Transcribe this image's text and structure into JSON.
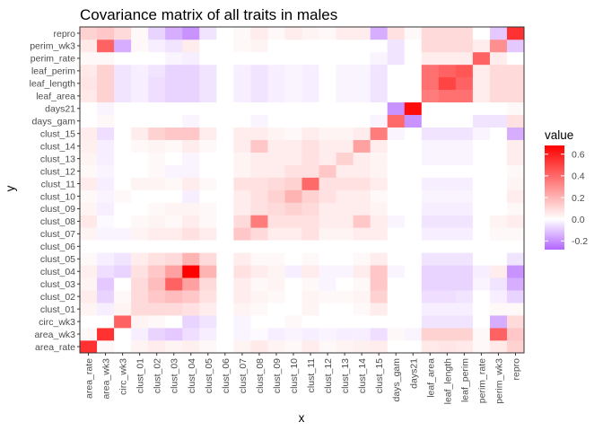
{
  "chart_data": {
    "type": "heatmap",
    "title": "Covariance matrix of all traits in males",
    "xlabel": "x",
    "ylabel": "y",
    "x": [
      "area_rate",
      "area_wk3",
      "circ_wk3",
      "clust_01",
      "clust_02",
      "clust_03",
      "clust_04",
      "clust_05",
      "clust_06",
      "clust_07",
      "clust_08",
      "clust_09",
      "clust_10",
      "clust_11",
      "clust_12",
      "clust_13",
      "clust_14",
      "clust_15",
      "days_gam",
      "days21",
      "leaf_area",
      "leaf_length",
      "leaf_perim",
      "perim_rate",
      "perim_wk3",
      "repro"
    ],
    "y": [
      "area_rate",
      "area_wk3",
      "circ_wk3",
      "clust_01",
      "clust_02",
      "clust_03",
      "clust_04",
      "clust_05",
      "clust_06",
      "clust_07",
      "clust_08",
      "clust_09",
      "clust_10",
      "clust_11",
      "clust_12",
      "clust_13",
      "clust_14",
      "clust_15",
      "days_gam",
      "days21",
      "leaf_area",
      "leaf_length",
      "leaf_perim",
      "perim_rate",
      "perim_wk3",
      "repro"
    ],
    "values": [
      [
        0.55,
        0.02,
        0.0,
        0.03,
        0.05,
        0.03,
        0.04,
        0.02,
        0.0,
        0.03,
        0.06,
        0.03,
        0.02,
        0.05,
        0.02,
        0.03,
        0.04,
        0.05,
        0.0,
        0.0,
        0.06,
        0.07,
        0.06,
        0.02,
        0.06,
        0.12
      ],
      [
        0.02,
        0.55,
        0.0,
        -0.03,
        -0.08,
        -0.1,
        -0.06,
        -0.03,
        0.0,
        -0.02,
        -0.01,
        -0.03,
        -0.02,
        -0.03,
        -0.02,
        -0.03,
        -0.03,
        -0.06,
        0.02,
        -0.02,
        0.12,
        0.12,
        0.12,
        0.02,
        0.42,
        0.15
      ],
      [
        0.0,
        0.0,
        0.42,
        0.03,
        0.02,
        0.0,
        -0.08,
        -0.05,
        0.0,
        -0.02,
        0.0,
        0.0,
        0.02,
        0.0,
        0.0,
        0.0,
        0.0,
        0.0,
        0.0,
        0.0,
        -0.05,
        -0.05,
        -0.05,
        0.0,
        -0.15,
        0.1
      ],
      [
        0.03,
        -0.03,
        0.03,
        0.1,
        0.1,
        0.1,
        0.08,
        0.05,
        0.0,
        0.03,
        0.02,
        0.0,
        0.0,
        0.03,
        0.0,
        0.0,
        0.02,
        0.05,
        0.0,
        0.0,
        -0.03,
        -0.03,
        -0.03,
        0.0,
        0.02,
        0.02
      ],
      [
        0.05,
        -0.08,
        0.02,
        0.1,
        0.15,
        0.18,
        0.15,
        0.08,
        0.0,
        0.05,
        0.03,
        0.02,
        0.0,
        0.03,
        0.02,
        0.02,
        0.03,
        0.12,
        0.0,
        0.0,
        -0.06,
        -0.06,
        -0.05,
        0.0,
        -0.03,
        -0.08
      ],
      [
        0.03,
        -0.1,
        0.0,
        0.1,
        0.18,
        0.42,
        0.25,
        0.1,
        0.0,
        0.05,
        0.02,
        0.03,
        0.0,
        0.02,
        -0.02,
        0.0,
        0.02,
        0.15,
        0.0,
        0.0,
        -0.08,
        -0.08,
        -0.08,
        -0.02,
        -0.05,
        -0.15
      ],
      [
        0.04,
        -0.06,
        -0.08,
        0.08,
        0.15,
        0.25,
        0.68,
        0.2,
        0.0,
        0.08,
        0.05,
        0.03,
        -0.03,
        0.05,
        -0.02,
        -0.02,
        0.05,
        0.15,
        -0.02,
        0.0,
        -0.08,
        -0.08,
        -0.08,
        -0.03,
        0.05,
        -0.2
      ],
      [
        0.02,
        -0.03,
        -0.05,
        0.05,
        0.08,
        0.1,
        0.2,
        0.1,
        0.0,
        0.05,
        0.02,
        0.02,
        0.0,
        0.02,
        0.0,
        0.0,
        0.02,
        0.05,
        0.0,
        0.0,
        -0.05,
        -0.05,
        -0.05,
        0.0,
        0.0,
        -0.05
      ],
      [
        0.0,
        0.0,
        0.0,
        0.0,
        0.0,
        0.0,
        0.0,
        0.0,
        0.0,
        0.0,
        0.0,
        0.0,
        0.0,
        0.0,
        0.0,
        0.0,
        0.0,
        0.0,
        0.0,
        0.0,
        0.0,
        0.0,
        0.0,
        0.0,
        0.0,
        0.0
      ],
      [
        0.03,
        -0.02,
        -0.02,
        0.03,
        0.05,
        0.05,
        0.08,
        0.05,
        0.0,
        0.15,
        0.1,
        0.05,
        0.05,
        0.08,
        0.03,
        0.03,
        0.05,
        0.05,
        0.0,
        0.0,
        -0.03,
        -0.03,
        -0.03,
        0.0,
        0.02,
        0.02
      ],
      [
        0.06,
        -0.01,
        0.0,
        0.02,
        0.03,
        0.02,
        0.05,
        0.02,
        0.0,
        0.1,
        0.35,
        0.08,
        0.08,
        0.08,
        0.05,
        0.05,
        0.15,
        0.05,
        -0.02,
        0.0,
        -0.05,
        -0.05,
        -0.05,
        0.0,
        0.03,
        0.05
      ],
      [
        0.03,
        -0.03,
        0.0,
        0.0,
        0.02,
        0.03,
        0.03,
        0.02,
        0.0,
        0.05,
        0.08,
        0.1,
        0.12,
        0.1,
        0.05,
        0.05,
        0.05,
        0.03,
        0.0,
        0.0,
        -0.03,
        -0.03,
        -0.03,
        0.0,
        0.0,
        0.02
      ],
      [
        0.02,
        -0.02,
        0.02,
        0.0,
        0.0,
        0.0,
        -0.03,
        0.0,
        0.0,
        0.05,
        0.08,
        0.12,
        0.2,
        0.12,
        0.08,
        0.05,
        0.05,
        0.02,
        0.0,
        0.0,
        -0.02,
        -0.02,
        -0.02,
        0.0,
        0.0,
        0.05
      ],
      [
        0.05,
        -0.03,
        0.0,
        0.03,
        0.03,
        0.02,
        0.05,
        0.02,
        0.0,
        0.08,
        0.08,
        0.1,
        0.12,
        0.4,
        0.08,
        0.08,
        0.08,
        0.05,
        0.0,
        0.0,
        -0.03,
        -0.03,
        -0.03,
        0.0,
        0.0,
        0.03
      ],
      [
        0.02,
        -0.02,
        0.0,
        0.0,
        0.02,
        -0.02,
        -0.02,
        0.0,
        0.0,
        0.03,
        0.05,
        0.05,
        0.08,
        0.08,
        0.15,
        0.05,
        0.05,
        0.03,
        0.0,
        0.0,
        0.0,
        0.0,
        0.0,
        0.0,
        0.0,
        0.02
      ],
      [
        0.03,
        -0.03,
        0.0,
        0.0,
        0.02,
        0.0,
        -0.02,
        0.0,
        0.0,
        0.03,
        0.05,
        0.05,
        0.05,
        0.08,
        0.05,
        0.12,
        0.05,
        0.03,
        0.0,
        0.0,
        -0.02,
        -0.02,
        -0.02,
        0.0,
        0.0,
        0.05
      ],
      [
        0.04,
        -0.03,
        0.0,
        0.02,
        0.03,
        0.02,
        0.05,
        0.02,
        0.0,
        0.05,
        0.15,
        0.05,
        0.05,
        0.08,
        0.05,
        0.05,
        0.25,
        0.05,
        0.0,
        0.0,
        -0.02,
        -0.02,
        -0.02,
        0.0,
        0.0,
        0.05
      ],
      [
        0.05,
        -0.06,
        0.0,
        0.05,
        0.12,
        0.15,
        0.15,
        0.05,
        0.0,
        0.05,
        0.05,
        0.03,
        0.02,
        0.05,
        0.03,
        0.03,
        0.05,
        0.35,
        -0.02,
        0.0,
        -0.05,
        -0.05,
        -0.05,
        -0.02,
        0.0,
        -0.15
      ],
      [
        0.0,
        0.02,
        0.0,
        0.0,
        0.0,
        0.0,
        -0.02,
        0.0,
        0.0,
        0.0,
        -0.02,
        0.0,
        0.0,
        0.0,
        0.0,
        0.0,
        0.0,
        -0.02,
        0.4,
        -0.2,
        0.0,
        0.0,
        0.0,
        -0.05,
        -0.05,
        0.08
      ],
      [
        0.0,
        -0.02,
        0.0,
        0.0,
        0.0,
        0.0,
        0.0,
        0.0,
        0.0,
        0.0,
        0.0,
        0.0,
        0.0,
        0.0,
        0.0,
        0.0,
        0.0,
        0.0,
        -0.2,
        0.65,
        0.0,
        0.0,
        0.0,
        0.0,
        0.0,
        0.02
      ],
      [
        0.06,
        0.12,
        -0.05,
        -0.03,
        -0.06,
        -0.08,
        -0.08,
        -0.05,
        0.0,
        -0.03,
        -0.05,
        -0.03,
        -0.02,
        -0.03,
        0.0,
        -0.02,
        -0.02,
        -0.05,
        0.0,
        0.0,
        0.35,
        0.38,
        0.38,
        0.05,
        0.1,
        0.1
      ],
      [
        0.07,
        0.12,
        -0.05,
        -0.03,
        -0.06,
        -0.08,
        -0.08,
        -0.05,
        0.0,
        -0.03,
        -0.05,
        -0.03,
        -0.02,
        -0.03,
        0.0,
        -0.02,
        -0.02,
        -0.05,
        0.0,
        0.0,
        0.38,
        0.5,
        0.42,
        0.05,
        0.1,
        0.1
      ],
      [
        0.06,
        0.12,
        -0.05,
        -0.03,
        -0.05,
        -0.08,
        -0.08,
        -0.05,
        0.0,
        -0.03,
        -0.05,
        -0.03,
        -0.02,
        -0.03,
        0.0,
        -0.02,
        -0.02,
        -0.05,
        0.0,
        0.0,
        0.38,
        0.42,
        0.45,
        0.05,
        0.1,
        0.1
      ],
      [
        0.02,
        0.02,
        0.0,
        0.0,
        0.0,
        -0.02,
        -0.03,
        0.0,
        0.0,
        0.0,
        0.0,
        0.0,
        0.0,
        0.0,
        0.0,
        0.0,
        0.0,
        -0.02,
        -0.05,
        0.0,
        0.05,
        0.05,
        0.05,
        0.42,
        0.05,
        0.0
      ],
      [
        0.06,
        0.42,
        -0.15,
        0.02,
        -0.03,
        -0.05,
        0.05,
        0.0,
        0.0,
        0.02,
        0.03,
        0.0,
        0.0,
        0.0,
        0.0,
        0.0,
        0.0,
        0.0,
        -0.05,
        0.0,
        0.1,
        0.1,
        0.1,
        0.05,
        0.3,
        -0.1
      ],
      [
        0.12,
        0.15,
        0.1,
        0.02,
        -0.08,
        -0.15,
        -0.2,
        -0.05,
        0.0,
        0.02,
        0.05,
        0.02,
        0.05,
        0.03,
        0.02,
        0.05,
        0.05,
        -0.15,
        0.08,
        0.02,
        0.1,
        0.1,
        0.1,
        0.0,
        -0.1,
        0.55
      ]
    ],
    "colorscale": {
      "low": "#b266ff",
      "mid": "#ffffff",
      "high": "#ff0000",
      "limits": [
        -0.28,
        0.68
      ]
    },
    "legend": {
      "title": "value",
      "ticks": [
        0.6,
        0.4,
        0.2,
        0.0,
        -0.2
      ],
      "tick_labels": [
        "0.6",
        "0.4",
        "0.2",
        "0.0",
        "-0.2"
      ],
      "position": "right"
    },
    "grid": true
  }
}
